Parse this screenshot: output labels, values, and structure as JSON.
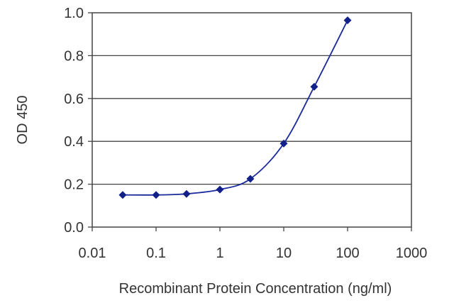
{
  "chart_data": {
    "type": "line",
    "title": "",
    "xlabel": "Recombinant Protein Concentration (ng/ml)",
    "ylabel": "OD 450",
    "xscale": "log",
    "xlim": [
      0.01,
      1000
    ],
    "ylim": [
      0.0,
      1.0
    ],
    "x_ticks": [
      0.01,
      0.1,
      1,
      10,
      100,
      1000
    ],
    "x_tick_labels": [
      "0.01",
      "0.1",
      "1",
      "10",
      "100",
      "1000"
    ],
    "y_ticks": [
      0.0,
      0.2,
      0.4,
      0.6,
      0.8,
      1.0
    ],
    "y_tick_labels": [
      "0.0",
      "0.2",
      "0.4",
      "0.6",
      "0.8",
      "1.0"
    ],
    "grid": "horizontal",
    "legend": "none",
    "series": [
      {
        "x": [
          0.03,
          0.1,
          0.3,
          1,
          3,
          10,
          30,
          100
        ],
        "y": [
          0.15,
          0.15,
          0.155,
          0.175,
          0.225,
          0.39,
          0.655,
          0.965
        ]
      }
    ],
    "colors": {
      "series": "#1a2a9c",
      "marker": "#12208a",
      "grid": "#444444",
      "frame": "#444444"
    }
  }
}
